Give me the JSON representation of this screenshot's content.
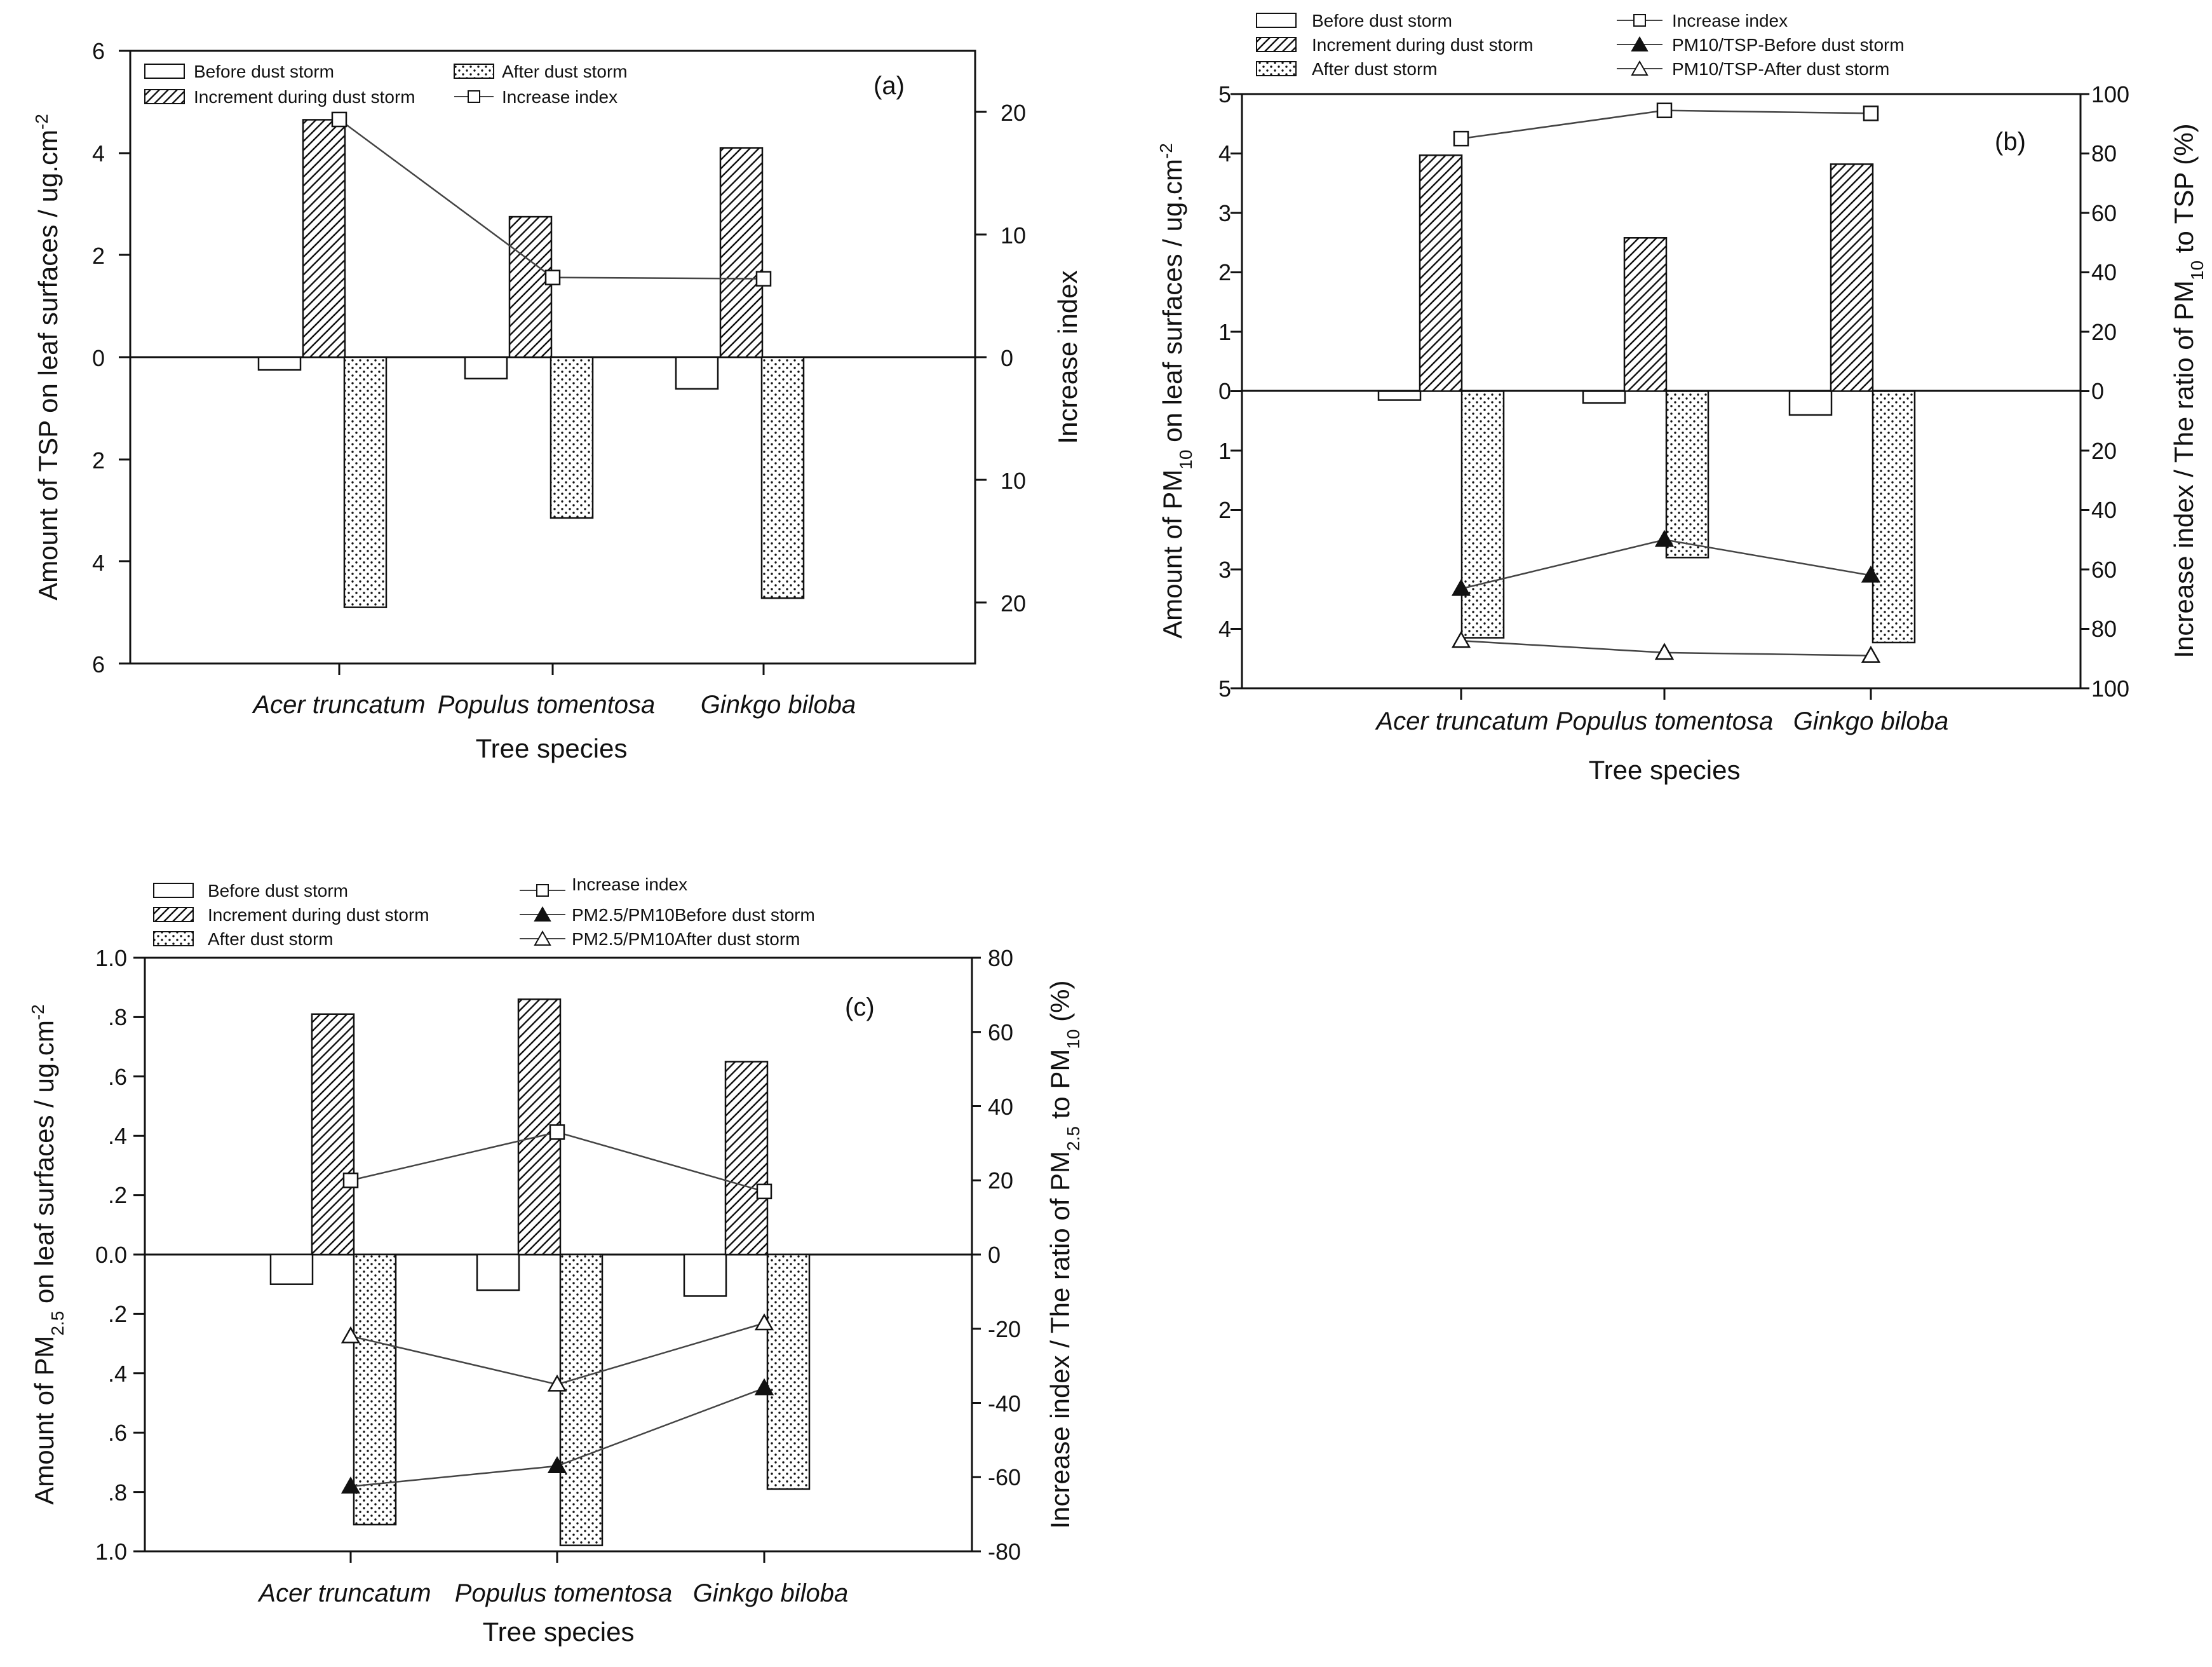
{
  "chart_data": [
    {
      "id": "a",
      "type": "bar",
      "panel_label": "(a)",
      "title": "",
      "xlabel": "Tree species",
      "ylabel": "Amount of TSP on leaf surfaces / ug.cm-2",
      "ylabel_main": "Amount of TSP on leaf surfaces / ug.cm",
      "ylabel_sup": "-2",
      "y2label": "Increase index",
      "categories": [
        "Acer truncatum",
        "Populus tomentosa",
        "Ginkgo biloba"
      ],
      "ylim": [
        -6,
        6
      ],
      "yticks": [
        6,
        4,
        2,
        0,
        -2,
        -4,
        -6
      ],
      "ytick_labels": [
        "6",
        "4",
        "2",
        "0",
        "2",
        "4",
        "6"
      ],
      "y2lim": [
        -25,
        25
      ],
      "y2ticks": [
        20,
        10,
        0,
        -10,
        -20
      ],
      "y2tick_labels": [
        "20",
        "10",
        "0",
        "10",
        "20"
      ],
      "series": [
        {
          "name": "Before dust storm",
          "kind": "bar",
          "pattern": "empty",
          "values": [
            -0.25,
            -0.42,
            -0.62
          ]
        },
        {
          "name": "Increment during dust storm",
          "kind": "bar",
          "pattern": "hatch",
          "values": [
            4.65,
            2.75,
            4.1
          ]
        },
        {
          "name": "After dust storm",
          "kind": "bar",
          "pattern": "dots",
          "values": [
            -4.9,
            -3.15,
            -4.72
          ]
        },
        {
          "name": "Increase index",
          "kind": "line",
          "axis": "right",
          "marker": "square",
          "values": [
            19.4,
            6.5,
            6.4
          ]
        }
      ],
      "legend_items": [
        "Before dust storm",
        "After dust storm",
        "Increment during dust storm",
        "Increase index"
      ]
    },
    {
      "id": "b",
      "type": "bar",
      "panel_label": "(b)",
      "title": "",
      "xlabel": "Tree species",
      "ylabel": "Amount of PM10 on leaf surfaces / ug.cm-2",
      "ylabel_parts": [
        "Amount of PM",
        "10",
        " on leaf surfaces / ug.cm",
        "-2"
      ],
      "y2label": "Increase index / The ratio of PM10 to TSP (%)",
      "y2label_parts": [
        "Increase index / The ratio of PM",
        "10",
        " to TSP (%)"
      ],
      "categories": [
        "Acer truncatum",
        "Populus tomentosa",
        "Ginkgo biloba"
      ],
      "ylim": [
        -5,
        5
      ],
      "yticks": [
        5,
        4,
        3,
        2,
        1,
        0,
        -1,
        -2,
        -3,
        -4,
        -5
      ],
      "ytick_labels": [
        "5",
        "4",
        "3",
        "2",
        "1",
        "0",
        "1",
        "2",
        "3",
        "4",
        "5"
      ],
      "y2lim": [
        -100,
        100
      ],
      "y2ticks": [
        100,
        80,
        60,
        40,
        20,
        0,
        -20,
        -40,
        -60,
        -80,
        -100
      ],
      "y2tick_labels": [
        "100",
        "80",
        "60",
        "40",
        "20",
        "0",
        "20",
        "40",
        "60",
        "80",
        "100"
      ],
      "series": [
        {
          "name": "Before dust storm",
          "kind": "bar",
          "pattern": "empty",
          "values": [
            -0.15,
            -0.2,
            -0.4
          ]
        },
        {
          "name": "Increment during dust storm",
          "kind": "bar",
          "pattern": "hatch",
          "values": [
            3.97,
            2.58,
            3.82
          ]
        },
        {
          "name": "After dust storm",
          "kind": "bar",
          "pattern": "dots",
          "values": [
            -4.15,
            -2.8,
            -4.23
          ]
        },
        {
          "name": "Increase index",
          "kind": "line",
          "axis": "right",
          "marker": "square",
          "values": [
            85,
            94.5,
            93.5
          ]
        },
        {
          "name": "PM10/TSP-Before dust storm",
          "kind": "line",
          "axis": "right",
          "marker": "triangle-filled",
          "values": [
            -66.5,
            -50,
            -62
          ]
        },
        {
          "name": "PM10/TSP-After dust storm",
          "kind": "line",
          "axis": "right",
          "marker": "triangle-open",
          "values": [
            -84,
            -88,
            -89
          ]
        }
      ],
      "legend_items": [
        "Before dust storm",
        "Increment during dust storm",
        "After dust storm",
        "Increase index",
        "PM10/TSP-Before dust storm",
        "PM10/TSP-After dust storm"
      ]
    },
    {
      "id": "c",
      "type": "bar",
      "panel_label": "(c)",
      "title": "",
      "xlabel": "Tree species",
      "ylabel": "Amount of PM2.5 on leaf surfaces / ug.cm-2",
      "ylabel_parts": [
        "Amount of PM",
        "2.5",
        " on leaf surfaces / ug.cm",
        "-2"
      ],
      "y2label": "Increase index / The ratio of PM2.5 to PM10 (%)",
      "y2label_parts": [
        "Increase index / The ratio of PM",
        "2.5",
        " to PM",
        "10",
        " (%)"
      ],
      "categories": [
        "Acer truncatum",
        "Populus tomentosa",
        "Ginkgo biloba"
      ],
      "ylim": [
        -1,
        1
      ],
      "yticks": [
        1,
        0.8,
        0.6,
        0.4,
        0.2,
        0,
        -0.2,
        -0.4,
        -0.6,
        -0.8,
        -1
      ],
      "ytick_labels": [
        "1.0",
        ".8",
        ".6",
        ".4",
        ".2",
        "0.0",
        ".2",
        ".4",
        ".6",
        ".8",
        "1.0"
      ],
      "y2lim": [
        -80,
        80
      ],
      "y2ticks": [
        80,
        60,
        40,
        20,
        0,
        -20,
        -40,
        -60,
        -80
      ],
      "y2tick_labels": [
        "80",
        "60",
        "40",
        "20",
        "0",
        "-20",
        "-40",
        "-60",
        "-80"
      ],
      "series": [
        {
          "name": "Before dust storm",
          "kind": "bar",
          "pattern": "empty",
          "values": [
            -0.1,
            -0.12,
            -0.14
          ]
        },
        {
          "name": "Increment during dust storm",
          "kind": "bar",
          "pattern": "hatch",
          "values": [
            0.81,
            0.86,
            0.65
          ]
        },
        {
          "name": "After dust storm",
          "kind": "bar",
          "pattern": "dots",
          "values": [
            -0.91,
            -0.98,
            -0.79
          ]
        },
        {
          "name": "Increase index",
          "kind": "line",
          "axis": "right",
          "marker": "square",
          "values": [
            20,
            33,
            17
          ]
        },
        {
          "name": "PM2.5/PM10-Before dust storm",
          "kind": "line",
          "axis": "right",
          "marker": "triangle-filled",
          "values": [
            -62.5,
            -57,
            -36
          ]
        },
        {
          "name": "PM2.5/PM10-After dust storm",
          "kind": "line",
          "axis": "right",
          "marker": "triangle-open",
          "values": [
            -22,
            -35,
            -18.5
          ]
        }
      ],
      "legend_items": [
        "Before dust storm",
        "Increment during dust storm",
        "After dust storm",
        "Increase index",
        "PM2.5/PM10Before dust storm",
        "PM2.5/PM10After dust storm"
      ]
    }
  ]
}
